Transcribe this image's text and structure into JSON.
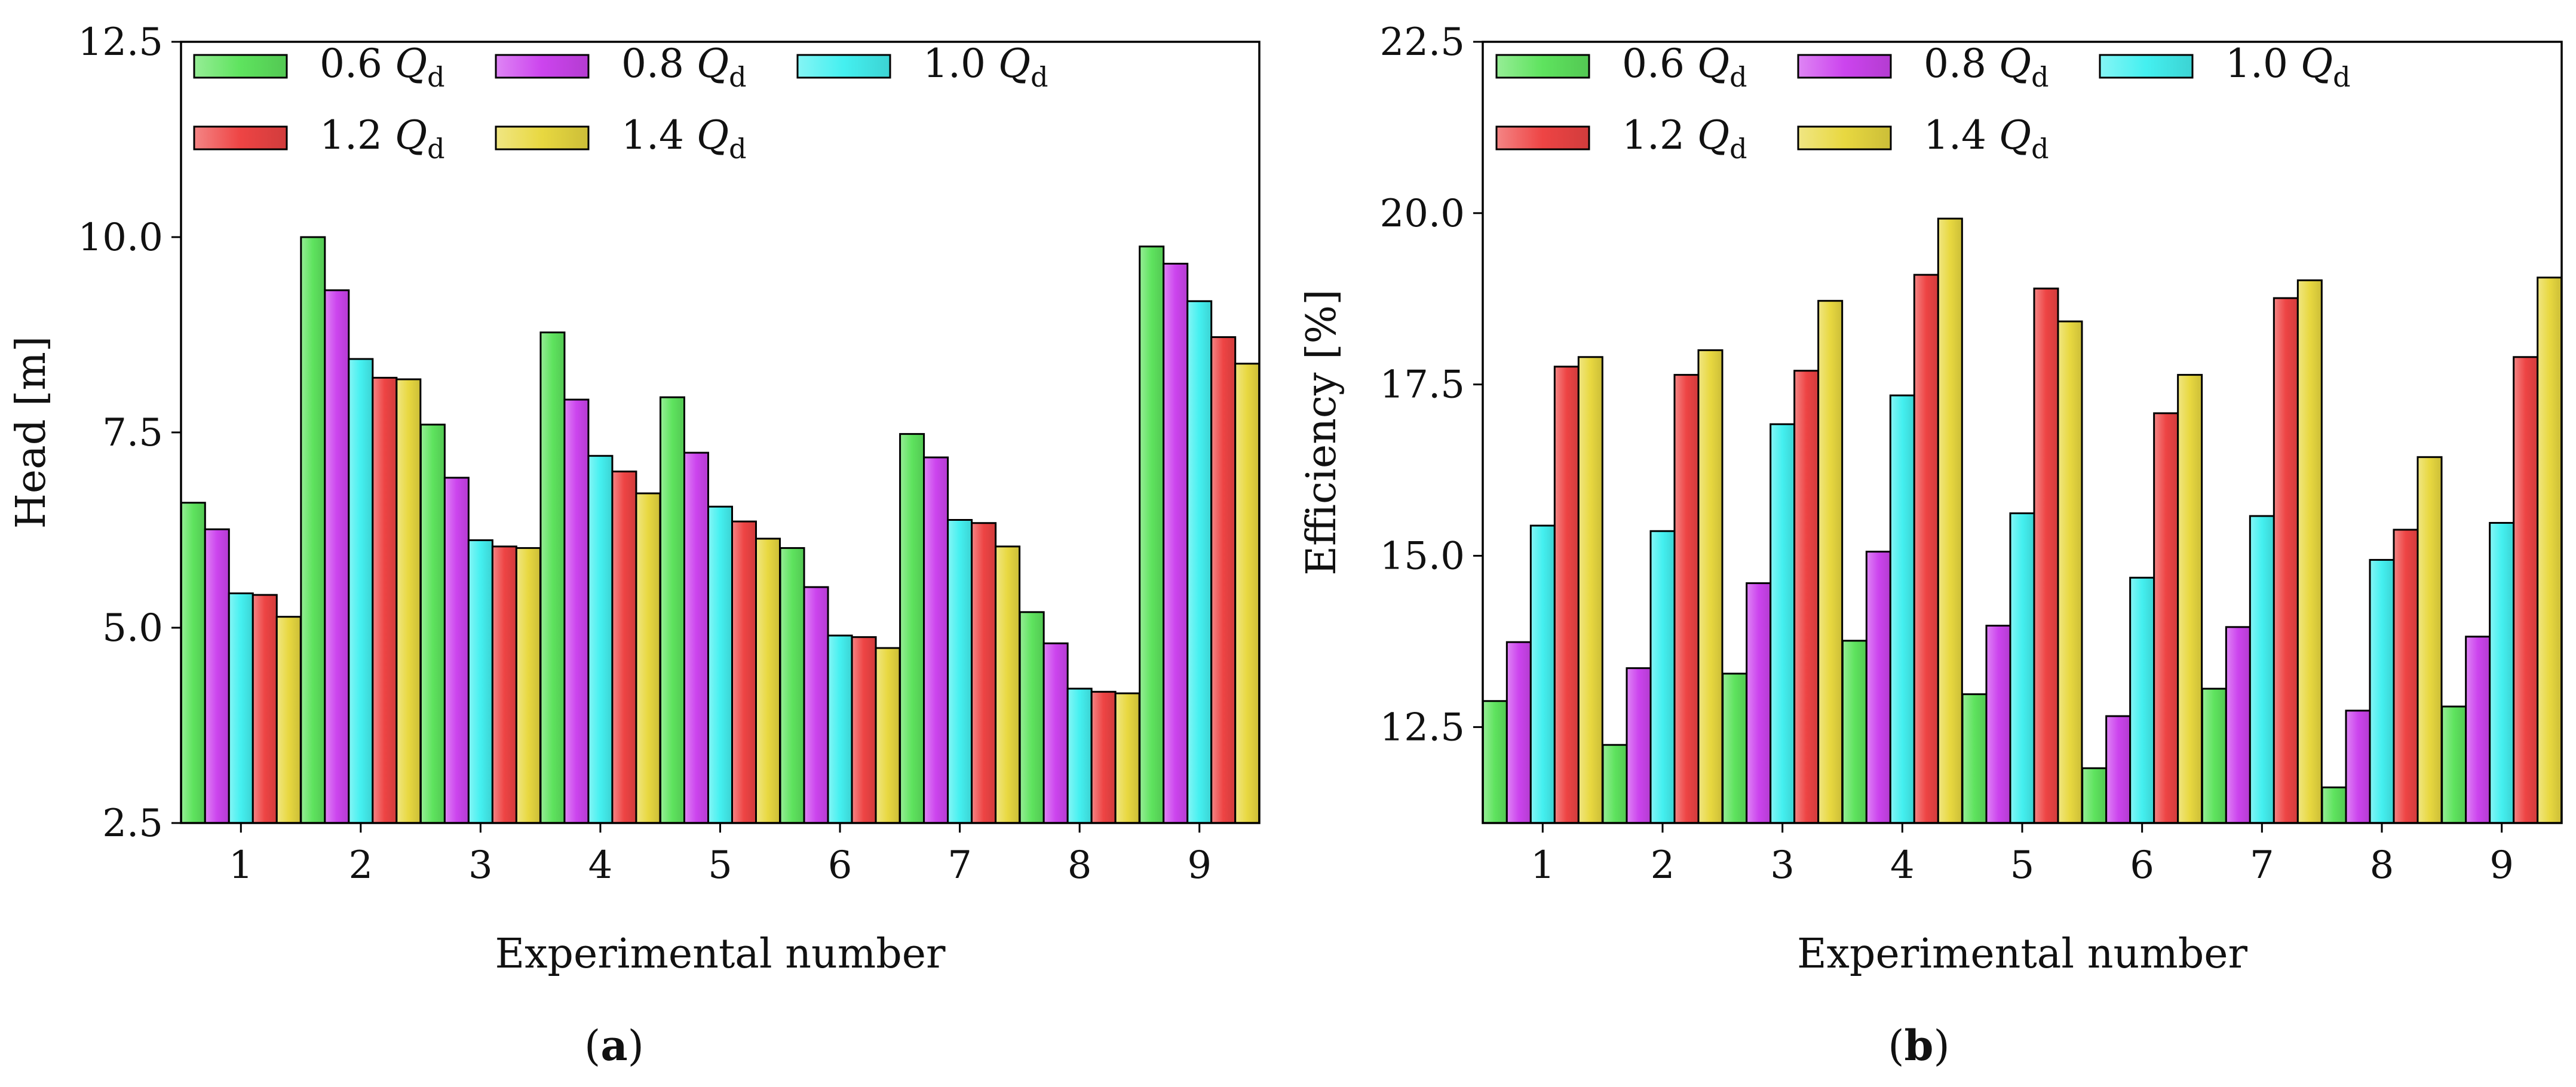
{
  "chart_data": [
    {
      "type": "bar",
      "panel": "a",
      "caption_letter": "a",
      "xlabel": "Experimental number",
      "ylabel": "Head [m]",
      "categories": [
        "1",
        "2",
        "3",
        "4",
        "5",
        "6",
        "7",
        "8",
        "9"
      ],
      "ylim": [
        2.5,
        12.5
      ],
      "yticks": [
        2.5,
        5.0,
        7.5,
        10.0,
        12.5
      ],
      "ytick_labels": [
        "2.5",
        "5.0",
        "7.5",
        "10.0",
        "12.5"
      ],
      "series": [
        {
          "name": "0.6",
          "sub": "d",
          "color": "#5ee35e",
          "values": [
            6.6,
            10.0,
            7.6,
            8.78,
            7.95,
            6.02,
            7.48,
            5.2,
            9.88
          ]
        },
        {
          "name": "0.8",
          "sub": "d",
          "color": "#cc44ee",
          "values": [
            6.26,
            9.32,
            6.92,
            7.92,
            7.24,
            5.52,
            7.18,
            4.8,
            9.66
          ]
        },
        {
          "name": "1.0",
          "sub": "d",
          "color": "#44f0f0",
          "values": [
            5.44,
            8.44,
            6.12,
            7.2,
            6.55,
            4.9,
            6.38,
            4.22,
            9.18
          ]
        },
        {
          "name": "1.2",
          "sub": "d",
          "color": "#ee4444",
          "values": [
            5.42,
            8.2,
            6.04,
            7.0,
            6.36,
            4.88,
            6.34,
            4.18,
            8.72
          ]
        },
        {
          "name": "1.4",
          "sub": "d",
          "color": "#e8d840",
          "values": [
            5.14,
            8.18,
            6.02,
            6.72,
            6.14,
            4.74,
            6.04,
            4.16,
            8.38
          ]
        }
      ],
      "legend_position": "top-left",
      "grid": false
    },
    {
      "type": "bar",
      "panel": "b",
      "caption_letter": "b",
      "xlabel": "Experimental number",
      "ylabel": "Efficiency [%]",
      "categories": [
        "1",
        "2",
        "3",
        "4",
        "5",
        "6",
        "7",
        "8",
        "9"
      ],
      "ylim": [
        11.1,
        22.5
      ],
      "yticks": [
        12.5,
        15.0,
        17.5,
        20.0,
        22.5
      ],
      "ytick_labels": [
        "12.5",
        "15.0",
        "17.5",
        "20.0",
        "22.5"
      ],
      "series": [
        {
          "name": "0.6",
          "sub": "d",
          "color": "#5ee35e",
          "values": [
            12.88,
            12.24,
            13.28,
            13.76,
            12.98,
            11.9,
            13.06,
            11.62,
            12.8
          ]
        },
        {
          "name": "0.8",
          "sub": "d",
          "color": "#cc44ee",
          "values": [
            13.74,
            13.36,
            14.6,
            15.06,
            13.98,
            12.66,
            13.96,
            12.74,
            13.82
          ]
        },
        {
          "name": "1.0",
          "sub": "d",
          "color": "#44f0f0",
          "values": [
            15.44,
            15.36,
            16.92,
            17.34,
            15.62,
            14.68,
            15.58,
            14.94,
            15.48
          ]
        },
        {
          "name": "1.2",
          "sub": "d",
          "color": "#ee4444",
          "values": [
            17.76,
            17.64,
            17.7,
            19.1,
            18.9,
            17.08,
            18.76,
            15.38,
            17.9
          ]
        },
        {
          "name": "1.4",
          "sub": "d",
          "color": "#e8d840",
          "values": [
            17.9,
            18.0,
            18.72,
            19.92,
            18.42,
            17.64,
            19.02,
            16.44,
            19.06
          ]
        }
      ],
      "legend_position": "top-left",
      "grid": false
    }
  ]
}
